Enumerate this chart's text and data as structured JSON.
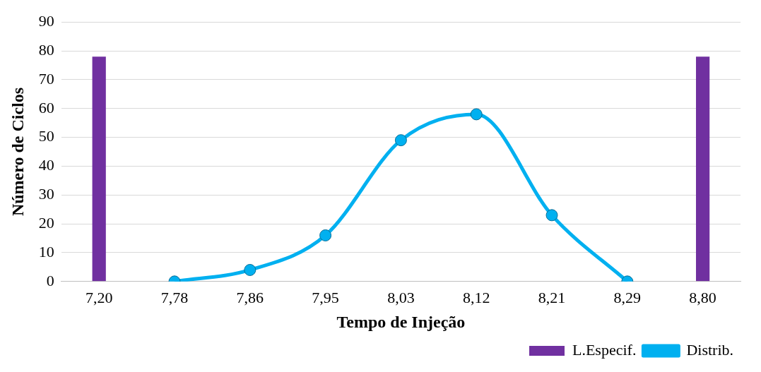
{
  "chart_data": {
    "type": "bar",
    "xlabel": "Tempo de Injeção",
    "ylabel": "Número de Ciclos",
    "categories": [
      "7,20",
      "7,78",
      "7,86",
      "7,95",
      "8,03",
      "8,12",
      "8,21",
      "8,29",
      "8,80"
    ],
    "series": [
      {
        "name": "L.Especif.",
        "color": "#7030a0",
        "values": [
          78,
          null,
          null,
          null,
          null,
          null,
          null,
          null,
          78
        ]
      },
      {
        "name": "Distrib.",
        "type": "line",
        "color": "#00b0f0",
        "values": [
          null,
          0,
          4,
          16,
          49,
          58,
          23,
          0,
          null
        ]
      }
    ],
    "ylim": [
      0,
      90
    ],
    "yticks": [
      0,
      10,
      20,
      30,
      40,
      50,
      60,
      70,
      80,
      90
    ],
    "grid": "y",
    "legend": "bottom right",
    "marker": "circle"
  }
}
